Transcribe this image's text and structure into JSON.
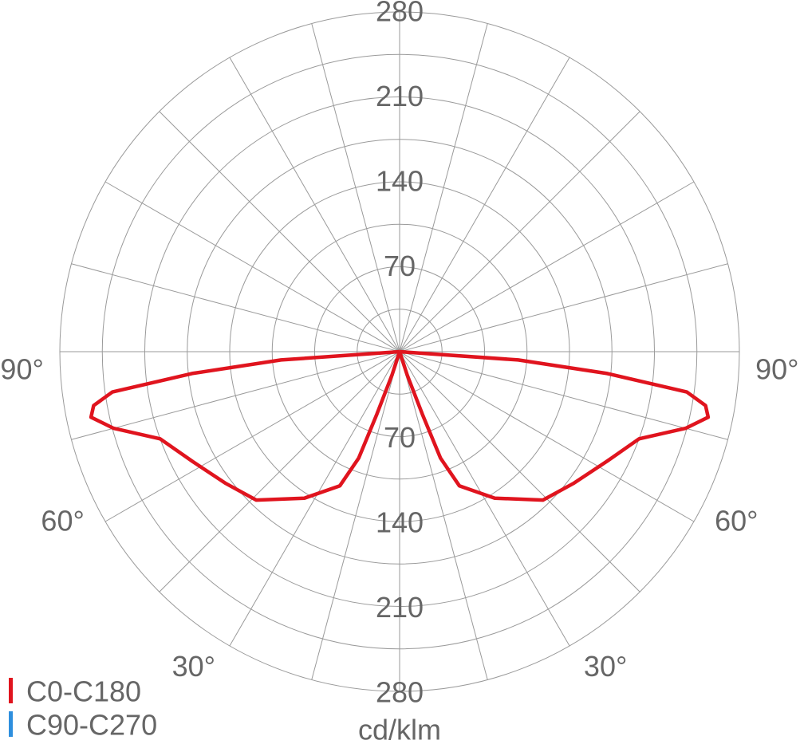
{
  "chart_data": {
    "type": "polar",
    "unit_label": "cd/klm",
    "rlim": [
      0,
      280
    ],
    "rticks": [
      70,
      140,
      210,
      280
    ],
    "rgrid_minor": [
      35,
      105,
      175,
      245
    ],
    "thetagrid": [
      0,
      15,
      30,
      45,
      60,
      75,
      90,
      105,
      120,
      135,
      150,
      165
    ],
    "thetaticks": [
      {
        "value": 30,
        "label": "30°"
      },
      {
        "value": 60,
        "label": "60°"
      },
      {
        "value": 90,
        "label": "90°"
      }
    ],
    "series": [
      {
        "name": "C0-C180",
        "color": "#e0141e",
        "theta": [
          0,
          18,
          20,
          21,
          24,
          33,
          44,
          53,
          62,
          70,
          75,
          78,
          80,
          82,
          84,
          86,
          90
        ],
        "values": [
          0,
          20,
          55,
          94,
          121,
          144,
          170,
          180,
          193,
          210,
          244,
          260,
          256,
          239,
          172,
          98,
          0
        ]
      },
      {
        "name": "C90-C270",
        "color": "#2e8fde"
      }
    ]
  }
}
